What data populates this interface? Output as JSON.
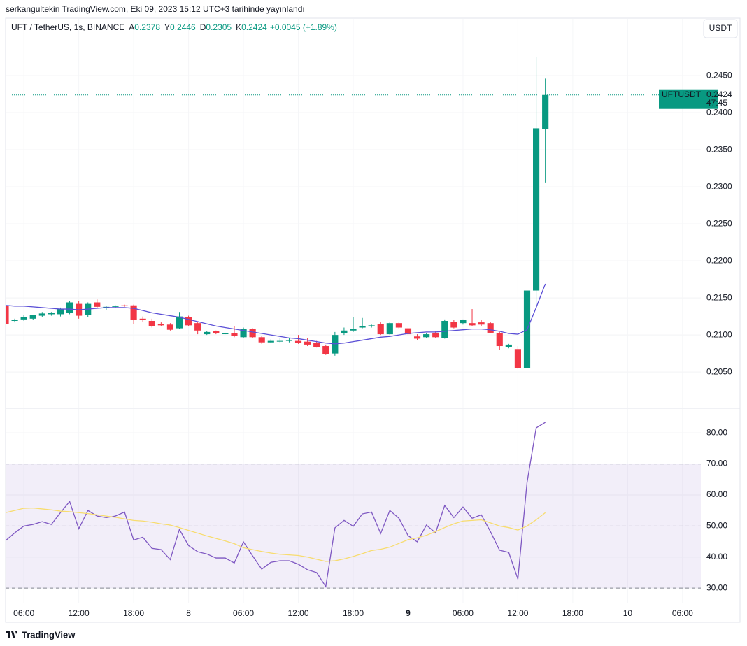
{
  "header": {
    "published": "serkangultekin TradingView.com, Eki 09, 2023 15:12 UTC+3 tarihinde yayınlandı",
    "currency": "USDT",
    "brand": "TradingView"
  },
  "chart_data": [
    {
      "type": "candlestick",
      "title": "UFT / TetherUS, 1s, BINANCE",
      "legend": [
        {
          "key": "A",
          "value": 0.2378
        },
        {
          "key": "Y",
          "value": 0.2446
        },
        {
          "key": "D",
          "value": 0.2305
        },
        {
          "key": "K",
          "value": 0.2424
        }
      ],
      "change": "+0.0045 (+1.89%)",
      "x": [
        4,
        5,
        6,
        7,
        8,
        9,
        10,
        11,
        12,
        13,
        14,
        15,
        16,
        17,
        18,
        19,
        20,
        21,
        22,
        23,
        24,
        25,
        26,
        27,
        28,
        29,
        30,
        31,
        32,
        33,
        34,
        35,
        36,
        37,
        38,
        39,
        40,
        41,
        42,
        43,
        44,
        45,
        46,
        47,
        48,
        49,
        50,
        51,
        52,
        53,
        54,
        55,
        56,
        57,
        58,
        59,
        60,
        61,
        62,
        63
      ],
      "open": [
        0.214,
        0.2119,
        0.2121,
        0.2122,
        0.2126,
        0.2128,
        0.2128,
        0.213,
        0.2142,
        0.2127,
        0.2144,
        0.2136,
        0.2138,
        0.214,
        0.214,
        0.2122,
        0.2119,
        0.2115,
        0.2114,
        0.2109,
        0.2124,
        0.2116,
        0.2101,
        0.2105,
        0.2102,
        0.2102,
        0.2097,
        0.2108,
        0.2097,
        0.209,
        0.2091,
        0.2092,
        0.2092,
        0.2091,
        0.2089,
        0.2085,
        0.2075,
        0.2102,
        0.2106,
        0.211,
        0.2112,
        0.2115,
        0.2101,
        0.2116,
        0.2109,
        0.2098,
        0.2097,
        0.2103,
        0.2096,
        0.2118,
        0.2116,
        0.2116,
        0.2117,
        0.2116,
        0.2102,
        0.2084,
        0.2081,
        0.2055,
        0.216,
        0.2378
      ],
      "high": [
        0.2141,
        0.2122,
        0.2127,
        0.2127,
        0.2131,
        0.2131,
        0.2137,
        0.2146,
        0.2146,
        0.2144,
        0.2148,
        0.2139,
        0.214,
        0.2141,
        0.2141,
        0.2125,
        0.2122,
        0.2117,
        0.2116,
        0.2131,
        0.2126,
        0.2117,
        0.2105,
        0.2106,
        0.2103,
        0.2112,
        0.211,
        0.2109,
        0.2099,
        0.2094,
        0.2096,
        0.2096,
        0.21,
        0.2096,
        0.2092,
        0.2087,
        0.2104,
        0.211,
        0.2124,
        0.2123,
        0.2114,
        0.2117,
        0.2118,
        0.2117,
        0.2111,
        0.2101,
        0.2103,
        0.2105,
        0.2121,
        0.212,
        0.2121,
        0.2135,
        0.212,
        0.2118,
        0.2104,
        0.2088,
        0.2085,
        0.2163,
        0.2475,
        0.2446
      ],
      "low": [
        0.2115,
        0.2117,
        0.2119,
        0.212,
        0.2124,
        0.2126,
        0.2125,
        0.2128,
        0.2122,
        0.2124,
        0.2136,
        0.2134,
        0.2136,
        0.2138,
        0.2115,
        0.2118,
        0.211,
        0.2112,
        0.2106,
        0.2108,
        0.2112,
        0.2101,
        0.21,
        0.2101,
        0.2101,
        0.2097,
        0.2096,
        0.2096,
        0.2088,
        0.2089,
        0.209,
        0.209,
        0.2088,
        0.2085,
        0.2083,
        0.2073,
        0.2072,
        0.21,
        0.2104,
        0.2109,
        0.211,
        0.21,
        0.21,
        0.2108,
        0.2099,
        0.2093,
        0.2096,
        0.2096,
        0.2095,
        0.2109,
        0.2114,
        0.2112,
        0.2112,
        0.2102,
        0.208,
        0.2082,
        0.2054,
        0.2045,
        0.2137,
        0.2305
      ],
      "close": [
        0.2115,
        0.212,
        0.2124,
        0.2127,
        0.2129,
        0.213,
        0.2135,
        0.2144,
        0.2126,
        0.2142,
        0.2138,
        0.2138,
        0.2139,
        0.2139,
        0.212,
        0.212,
        0.2112,
        0.2113,
        0.2107,
        0.2125,
        0.2113,
        0.2106,
        0.2104,
        0.2102,
        0.2102,
        0.2099,
        0.2108,
        0.2097,
        0.209,
        0.2092,
        0.2092,
        0.2093,
        0.2089,
        0.2087,
        0.2084,
        0.2074,
        0.21,
        0.2106,
        0.2108,
        0.2112,
        0.2113,
        0.2101,
        0.2116,
        0.211,
        0.2101,
        0.2095,
        0.2101,
        0.2097,
        0.2119,
        0.211,
        0.212,
        0.2113,
        0.2114,
        0.2103,
        0.2085,
        0.2087,
        0.2055,
        0.216,
        0.2379,
        0.2424
      ],
      "up_color": "#089981",
      "down_color": "#f23645",
      "moving_average": {
        "color": "#5b4fd6",
        "values": [
          0.214,
          0.2139,
          0.2139,
          0.2138,
          0.2137,
          0.2136,
          0.2135,
          0.2135,
          0.2134,
          0.2135,
          0.2136,
          0.2137,
          0.2137,
          0.2137,
          0.2136,
          0.2133,
          0.213,
          0.2128,
          0.2126,
          0.2124,
          0.2121,
          0.2118,
          0.2115,
          0.2112,
          0.211,
          0.2108,
          0.2106,
          0.2104,
          0.2102,
          0.21,
          0.2098,
          0.2096,
          0.2095,
          0.2093,
          0.2091,
          0.2089,
          0.2088,
          0.2089,
          0.2091,
          0.2093,
          0.2095,
          0.2097,
          0.2098,
          0.21,
          0.2102,
          0.2103,
          0.2104,
          0.2104,
          0.2105,
          0.2106,
          0.2107,
          0.2108,
          0.2108,
          0.2107,
          0.2105,
          0.2102,
          0.2101,
          0.2107,
          0.2137,
          0.2169
        ]
      },
      "last_price": {
        "symbol": "UFTUSDT",
        "value": 0.2424,
        "countdown": "47:45"
      },
      "xlim": [
        4,
        80
      ],
      "ylim": [
        0.2002,
        0.2503
      ],
      "yticks": [
        {
          "value": 0.205,
          "label": "0.2050"
        },
        {
          "value": 0.21,
          "label": "0.2100"
        },
        {
          "value": 0.215,
          "label": "0.2150"
        },
        {
          "value": 0.22,
          "label": "0.2200"
        },
        {
          "value": 0.225,
          "label": "0.2250"
        },
        {
          "value": 0.23,
          "label": "0.2300"
        },
        {
          "value": 0.235,
          "label": "0.2350"
        },
        {
          "value": 0.24,
          "label": "0.2400"
        },
        {
          "value": 0.245,
          "label": "0.2450"
        }
      ],
      "grid": true
    },
    {
      "type": "line",
      "x": [
        4,
        5,
        6,
        7,
        8,
        9,
        10,
        11,
        12,
        13,
        14,
        15,
        16,
        17,
        18,
        19,
        20,
        21,
        22,
        23,
        24,
        25,
        26,
        27,
        28,
        29,
        30,
        31,
        32,
        33,
        34,
        35,
        36,
        37,
        38,
        39,
        40,
        41,
        42,
        43,
        44,
        45,
        46,
        47,
        48,
        49,
        50,
        51,
        52,
        53,
        54,
        55,
        56,
        57,
        58,
        59,
        60,
        61,
        62,
        63
      ],
      "series": [
        {
          "color": "#7e57c2",
          "values": [
            45.3,
            47.8,
            50.0,
            50.5,
            51.4,
            50.5,
            54.3,
            57.9,
            49.1,
            55.0,
            53.2,
            52.7,
            53.2,
            54.5,
            45.5,
            46.4,
            42.8,
            42.4,
            39.2,
            48.9,
            43.7,
            41.7,
            41.0,
            39.7,
            39.7,
            38.1,
            44.9,
            40.4,
            36.1,
            38.3,
            38.8,
            38.8,
            37.7,
            35.9,
            35.0,
            30.5,
            49.4,
            51.8,
            49.9,
            53.9,
            54.5,
            47.6,
            55.0,
            52.5,
            46.9,
            44.9,
            50.3,
            47.8,
            56.6,
            52.7,
            56.1,
            52.5,
            53.6,
            48.2,
            42.2,
            41.5,
            32.9,
            64.0,
            81.6,
            83.4
          ]
        },
        {
          "color": "#f7dc6f",
          "values": [
            54.3,
            55.0,
            55.7,
            55.8,
            55.5,
            55.2,
            54.8,
            54.6,
            54.3,
            54.0,
            53.6,
            53.2,
            52.8,
            52.3,
            51.8,
            51.6,
            51.2,
            50.7,
            50.3,
            49.5,
            48.6,
            47.7,
            46.8,
            46.0,
            45.2,
            44.3,
            43.0,
            42.4,
            41.8,
            41.3,
            40.9,
            40.7,
            40.5,
            40.0,
            39.3,
            38.6,
            38.8,
            39.4,
            40.2,
            41.1,
            42.1,
            42.5,
            43.2,
            44.4,
            45.6,
            46.2,
            47.0,
            48.2,
            49.5,
            50.7,
            51.6,
            51.8,
            52.0,
            51.0,
            50.0,
            49.5,
            48.7,
            50.0,
            52.0,
            54.3
          ]
        }
      ],
      "bands": {
        "lower": 30,
        "middle": 50,
        "upper": 70,
        "color": "#7e57c2"
      },
      "xlim": [
        4,
        80
      ],
      "ylim": [
        25.3,
        87.7
      ],
      "xticks": [
        {
          "value": 6,
          "label": "06:00"
        },
        {
          "value": 12,
          "label": "12:00"
        },
        {
          "value": 18,
          "label": "18:00"
        },
        {
          "value": 24,
          "label": "8"
        },
        {
          "value": 30,
          "label": "06:00"
        },
        {
          "value": 36,
          "label": "12:00"
        },
        {
          "value": 42,
          "label": "18:00"
        },
        {
          "value": 48,
          "label": "9",
          "bold": true
        },
        {
          "value": 54,
          "label": "06:00"
        },
        {
          "value": 60,
          "label": "12:00"
        },
        {
          "value": 66,
          "label": "18:00"
        },
        {
          "value": 72,
          "label": "10"
        },
        {
          "value": 78,
          "label": "06:00"
        }
      ],
      "yticks": [
        {
          "value": 30,
          "label": "30.00"
        },
        {
          "value": 40,
          "label": "40.00"
        },
        {
          "value": 50,
          "label": "50.00"
        },
        {
          "value": 60,
          "label": "60.00"
        },
        {
          "value": 70,
          "label": "70.00"
        },
        {
          "value": 80,
          "label": "80.00"
        }
      ],
      "grid": true
    }
  ]
}
